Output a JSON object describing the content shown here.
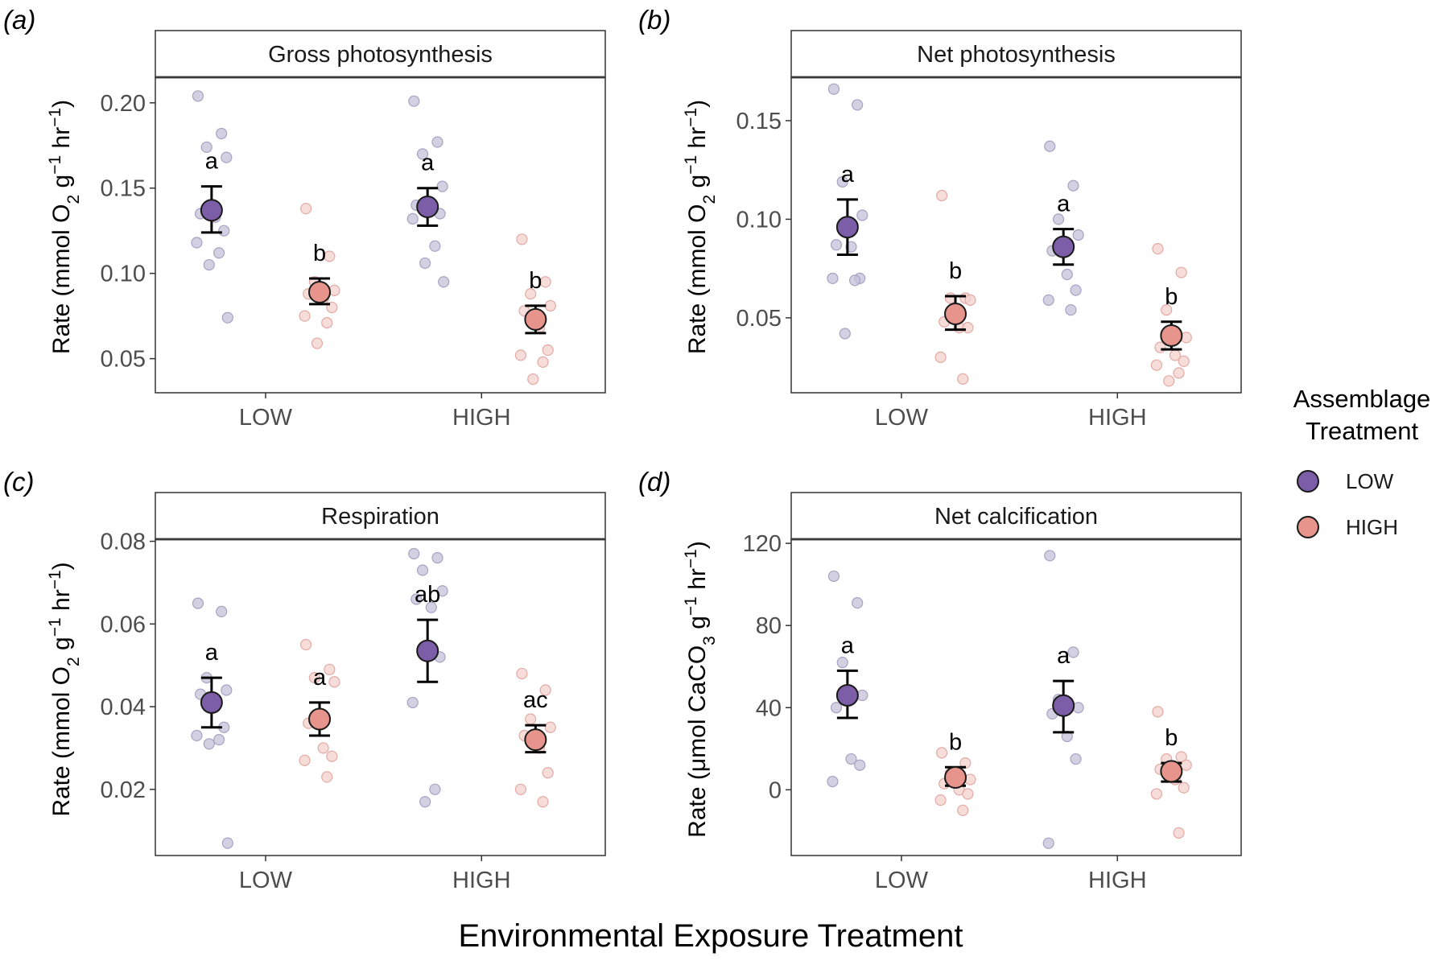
{
  "x_axis_title": "Environmental Exposure Treatment",
  "legend": {
    "title_line1": "Assemblage",
    "title_line2": "Treatment",
    "items": [
      {
        "label": "LOW",
        "color": "#7b5ea7"
      },
      {
        "label": "HIGH",
        "color": "#e7958c"
      }
    ]
  },
  "colors": {
    "low_mean": "#7b5ea7",
    "high_mean": "#e7958c",
    "low_raw": "#c4c0d8",
    "high_raw": "#f3d2ce",
    "panel_border": "#333333"
  },
  "chart_data": [
    {
      "panel": "(a)",
      "type": "scatter",
      "title": "Gross photosynthesis",
      "ylabel_prefix": "Rate (mmol O",
      "ylabel_sub": "2",
      "ylabel_mid": " g",
      "ylabel_sup1": "−1",
      "ylabel_unit2": " hr",
      "ylabel_sup2": "−1",
      "ylabel_suffix": ")",
      "categories": [
        "LOW",
        "HIGH"
      ],
      "ylim": [
        0.03,
        0.215
      ],
      "yticks": [
        0.05,
        0.1,
        0.15,
        0.2
      ],
      "ytick_labels": [
        "0.05",
        "0.10",
        "0.15",
        "0.20"
      ],
      "series": [
        {
          "name": "LOW",
          "points": [
            {
              "cat": 0,
              "mean": 0.137,
              "lo": 0.124,
              "hi": 0.151,
              "label": "a",
              "raw": [
                0.204,
                0.182,
                0.174,
                0.168,
                0.135,
                0.133,
                0.125,
                0.118,
                0.112,
                0.105,
                0.074
              ]
            },
            {
              "cat": 1,
              "mean": 0.139,
              "lo": 0.128,
              "hi": 0.15,
              "label": "a",
              "raw": [
                0.201,
                0.177,
                0.17,
                0.151,
                0.14,
                0.138,
                0.135,
                0.132,
                0.116,
                0.106,
                0.095
              ]
            }
          ]
        },
        {
          "name": "HIGH",
          "points": [
            {
              "cat": 0,
              "mean": 0.089,
              "lo": 0.082,
              "hi": 0.097,
              "label": "b",
              "raw": [
                0.138,
                0.11,
                0.095,
                0.09,
                0.088,
                0.085,
                0.08,
                0.075,
                0.071,
                0.059
              ]
            },
            {
              "cat": 1,
              "mean": 0.073,
              "lo": 0.065,
              "hi": 0.081,
              "label": "b",
              "raw": [
                0.12,
                0.095,
                0.088,
                0.081,
                0.078,
                0.068,
                0.055,
                0.052,
                0.048,
                0.038
              ]
            }
          ]
        }
      ]
    },
    {
      "panel": "(b)",
      "type": "scatter",
      "title": "Net photosynthesis",
      "ylabel_prefix": "Rate (mmol O",
      "ylabel_sub": "2",
      "ylabel_mid": " g",
      "ylabel_sup1": "−1",
      "ylabel_unit2": " hr",
      "ylabel_sup2": "−1",
      "ylabel_suffix": ")",
      "categories": [
        "LOW",
        "HIGH"
      ],
      "ylim": [
        0.012,
        0.172
      ],
      "yticks": [
        0.05,
        0.1,
        0.15
      ],
      "ytick_labels": [
        "0.05",
        "0.10",
        "0.15"
      ],
      "series": [
        {
          "name": "LOW",
          "points": [
            {
              "cat": 0,
              "mean": 0.096,
              "lo": 0.082,
              "hi": 0.11,
              "label": "a",
              "raw": [
                0.166,
                0.158,
                0.119,
                0.102,
                0.087,
                0.086,
                0.07,
                0.07,
                0.069,
                0.042
              ]
            },
            {
              "cat": 1,
              "mean": 0.086,
              "lo": 0.077,
              "hi": 0.095,
              "label": "a",
              "raw": [
                0.137,
                0.117,
                0.1,
                0.092,
                0.084,
                0.072,
                0.064,
                0.059,
                0.054
              ]
            }
          ]
        },
        {
          "name": "HIGH",
          "points": [
            {
              "cat": 0,
              "mean": 0.052,
              "lo": 0.044,
              "hi": 0.061,
              "label": "b",
              "raw": [
                0.112,
                0.06,
                0.06,
                0.059,
                0.048,
                0.045,
                0.045,
                0.03,
                0.019
              ]
            },
            {
              "cat": 1,
              "mean": 0.041,
              "lo": 0.034,
              "hi": 0.048,
              "label": "b",
              "raw": [
                0.085,
                0.073,
                0.054,
                0.04,
                0.035,
                0.031,
                0.028,
                0.026,
                0.022,
                0.018
              ]
            }
          ]
        }
      ]
    },
    {
      "panel": "(c)",
      "type": "scatter",
      "title": "Respiration",
      "ylabel_prefix": "Rate (mmol O",
      "ylabel_sub": "2",
      "ylabel_mid": " g",
      "ylabel_sup1": "−1",
      "ylabel_unit2": " hr",
      "ylabel_sup2": "−1",
      "ylabel_suffix": ")",
      "categories": [
        "LOW",
        "HIGH"
      ],
      "ylim": [
        0.004,
        0.0805
      ],
      "yticks": [
        0.02,
        0.04,
        0.06,
        0.08
      ],
      "ytick_labels": [
        "0.02",
        "0.04",
        "0.06",
        "0.08"
      ],
      "series": [
        {
          "name": "LOW",
          "points": [
            {
              "cat": 0,
              "mean": 0.041,
              "lo": 0.035,
              "hi": 0.047,
              "label": "a",
              "raw": [
                0.065,
                0.063,
                0.047,
                0.044,
                0.043,
                0.04,
                0.035,
                0.033,
                0.032,
                0.031,
                0.007
              ]
            },
            {
              "cat": 1,
              "mean": 0.0535,
              "lo": 0.046,
              "hi": 0.061,
              "label": "ab",
              "raw": [
                0.077,
                0.076,
                0.073,
                0.068,
                0.066,
                0.064,
                0.052,
                0.041,
                0.02,
                0.017
              ]
            }
          ]
        },
        {
          "name": "HIGH",
          "points": [
            {
              "cat": 0,
              "mean": 0.037,
              "lo": 0.033,
              "hi": 0.041,
              "label": "a",
              "raw": [
                0.055,
                0.049,
                0.047,
                0.046,
                0.036,
                0.03,
                0.028,
                0.027,
                0.023
              ]
            },
            {
              "cat": 1,
              "mean": 0.032,
              "lo": 0.029,
              "hi": 0.0355,
              "label": "ac",
              "raw": [
                0.048,
                0.044,
                0.037,
                0.035,
                0.033,
                0.03,
                0.024,
                0.02,
                0.017
              ]
            }
          ]
        }
      ]
    },
    {
      "panel": "(d)",
      "type": "scatter",
      "title": "Net calcification",
      "ylabel_prefix": "Rate (μmol CaCO",
      "ylabel_sub": "3",
      "ylabel_mid": " g",
      "ylabel_sup1": "−1",
      "ylabel_unit2": " hr",
      "ylabel_sup2": "−1",
      "ylabel_suffix": ")",
      "categories": [
        "LOW",
        "HIGH"
      ],
      "ylim": [
        -32,
        122
      ],
      "yticks": [
        0,
        40,
        80,
        120
      ],
      "ytick_labels": [
        "0",
        "40",
        "80",
        "120"
      ],
      "series": [
        {
          "name": "LOW",
          "points": [
            {
              "cat": 0,
              "mean": 46,
              "lo": 35,
              "hi": 58,
              "label": "a",
              "raw": [
                104,
                91,
                62,
                46,
                40,
                15,
                12,
                4
              ]
            },
            {
              "cat": 1,
              "mean": 41,
              "lo": 28,
              "hi": 53,
              "label": "a",
              "raw": [
                114,
                67,
                44,
                40,
                37,
                26,
                15,
                -26
              ]
            }
          ]
        },
        {
          "name": "HIGH",
          "points": [
            {
              "cat": 0,
              "mean": 6,
              "lo": 2,
              "hi": 11,
              "label": "b",
              "raw": [
                18,
                13,
                8,
                5,
                3,
                0,
                -2,
                -5,
                -10
              ]
            },
            {
              "cat": 1,
              "mean": 9,
              "lo": 4,
              "hi": 13,
              "label": "b",
              "raw": [
                38,
                16,
                15,
                12,
                10,
                5,
                1,
                -2,
                -21
              ]
            }
          ]
        }
      ]
    }
  ]
}
